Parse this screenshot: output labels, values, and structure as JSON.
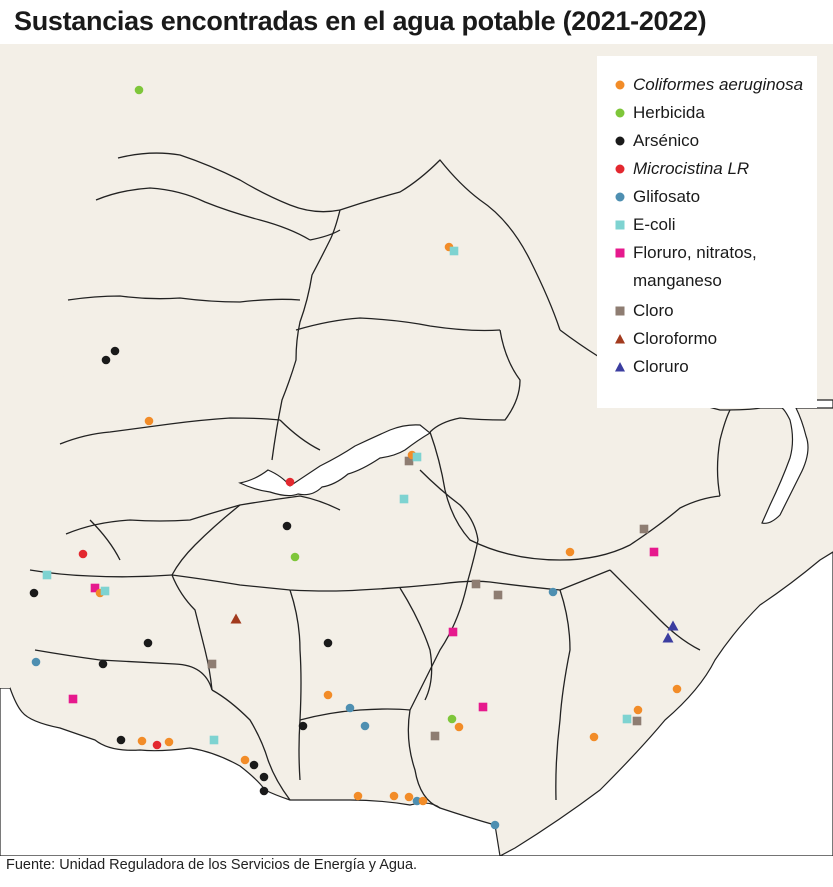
{
  "title": "Sustancias encontradas en el agua potable (2021-2022)",
  "source": "Fuente: Unidad Reguladora de los Servicios de Energía y Agua.",
  "legend": [
    {
      "key": "coliformes",
      "label": "Coliformes aeruginosa",
      "italic": true,
      "shape": "circle",
      "color": "#f28c28"
    },
    {
      "key": "herbicida",
      "label": "Herbicida",
      "italic": false,
      "shape": "circle",
      "color": "#7ec63a"
    },
    {
      "key": "arsenico",
      "label": "Arsénico",
      "italic": false,
      "shape": "circle",
      "color": "#1a1a1a"
    },
    {
      "key": "microcistina",
      "label": "Microcistina LR",
      "italic": true,
      "shape": "circle",
      "color": "#e3282f"
    },
    {
      "key": "glifosato",
      "label": "Glifosato",
      "italic": false,
      "shape": "circle",
      "color": "#4e8fb1"
    },
    {
      "key": "ecoli",
      "label": "E-coli",
      "italic": false,
      "shape": "square",
      "color": "#7ed3d1"
    },
    {
      "key": "floruro",
      "label": "Floruro, nitratos,",
      "label2": "manganeso",
      "italic": false,
      "shape": "square",
      "color": "#e6198d"
    },
    {
      "key": "cloro",
      "label": "Cloro",
      "italic": false,
      "shape": "square",
      "color": "#8e7d72"
    },
    {
      "key": "cloroformo",
      "label": "Cloroformo",
      "italic": false,
      "shape": "triangle",
      "color": "#a23a1e"
    },
    {
      "key": "cloruro",
      "label": "Cloruro",
      "italic": false,
      "shape": "triangle",
      "color": "#3b3da0"
    }
  ],
  "map": {
    "land_color": "#f3efe7",
    "water_color": "#ffffff",
    "border_color": "#222222"
  }
}
